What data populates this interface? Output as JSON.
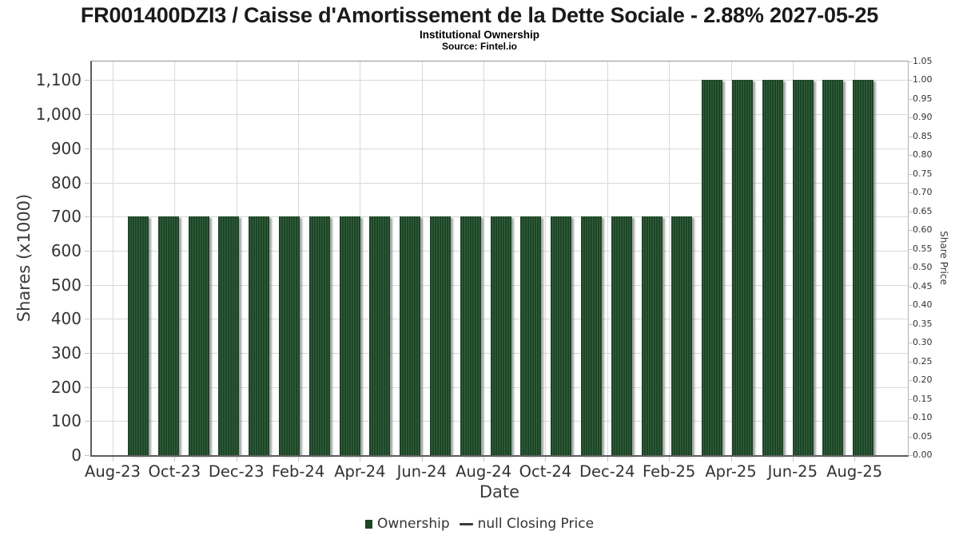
{
  "chart_data": {
    "type": "bar",
    "title": "FR001400DZI3 / Caisse d'Amortissement de la Dette Sociale - 2.88% 2027-05-25",
    "subtitle": "Institutional Ownership",
    "source": "Source: Fintel.io",
    "xlabel": "Date",
    "ylabel_left": "Shares (x1000)",
    "ylabel_right": "Share Price",
    "categories": [
      "Aug-23",
      "Sep-23",
      "Oct-23",
      "Nov-23",
      "Dec-23",
      "Jan-24",
      "Feb-24",
      "Mar-24",
      "Apr-24",
      "May-24",
      "Jun-24",
      "Jul-24",
      "Aug-24",
      "Sep-24",
      "Oct-24",
      "Nov-24",
      "Dec-24",
      "Jan-25",
      "Feb-25",
      "Mar-25",
      "Apr-25",
      "May-25",
      "Jun-25",
      "Jul-25",
      "Aug-25"
    ],
    "series": [
      {
        "name": "Ownership",
        "type": "bar",
        "axis": "left",
        "color_dark": "#1c4526",
        "color_light": "#33613d",
        "shadow_color": "rgba(105,105,105,0.6)",
        "values": [
          700,
          700,
          700,
          700,
          700,
          700,
          700,
          700,
          700,
          700,
          700,
          700,
          700,
          700,
          700,
          700,
          700,
          700,
          700,
          1100,
          1100,
          1100,
          1100,
          1100,
          1100
        ]
      },
      {
        "name": "null Closing Price",
        "type": "line",
        "axis": "right",
        "color": "#3a3a3a",
        "values": []
      }
    ],
    "ylim_left": [
      0,
      1155
    ],
    "ylim_right": [
      0,
      1.05
    ],
    "yticks_left": [
      "0",
      "100",
      "200",
      "300",
      "400",
      "500",
      "600",
      "700",
      "800",
      "900",
      "1,000",
      "1,100"
    ],
    "yticks_right": [
      "0.00",
      "0.05",
      "0.10",
      "0.15",
      "0.20",
      "0.25",
      "0.30",
      "0.35",
      "0.40",
      "0.45",
      "0.50",
      "0.55",
      "0.60",
      "0.65",
      "0.70",
      "0.75",
      "0.80",
      "0.85",
      "0.90",
      "0.95",
      "1.00",
      "1.05"
    ],
    "xticks": [
      "Aug-23",
      "Oct-23",
      "Dec-23",
      "Feb-24",
      "Apr-24",
      "Jun-24",
      "Aug-24",
      "Oct-24",
      "Dec-24",
      "Feb-25",
      "Apr-25",
      "Jun-25",
      "Aug-25"
    ],
    "grid": true,
    "grid_color": "#d9d9d9",
    "legend_position": "bottom"
  },
  "legend": {
    "items": [
      {
        "label": "Ownership",
        "marker": "square"
      },
      {
        "label": "null Closing Price",
        "marker": "dash"
      }
    ]
  }
}
